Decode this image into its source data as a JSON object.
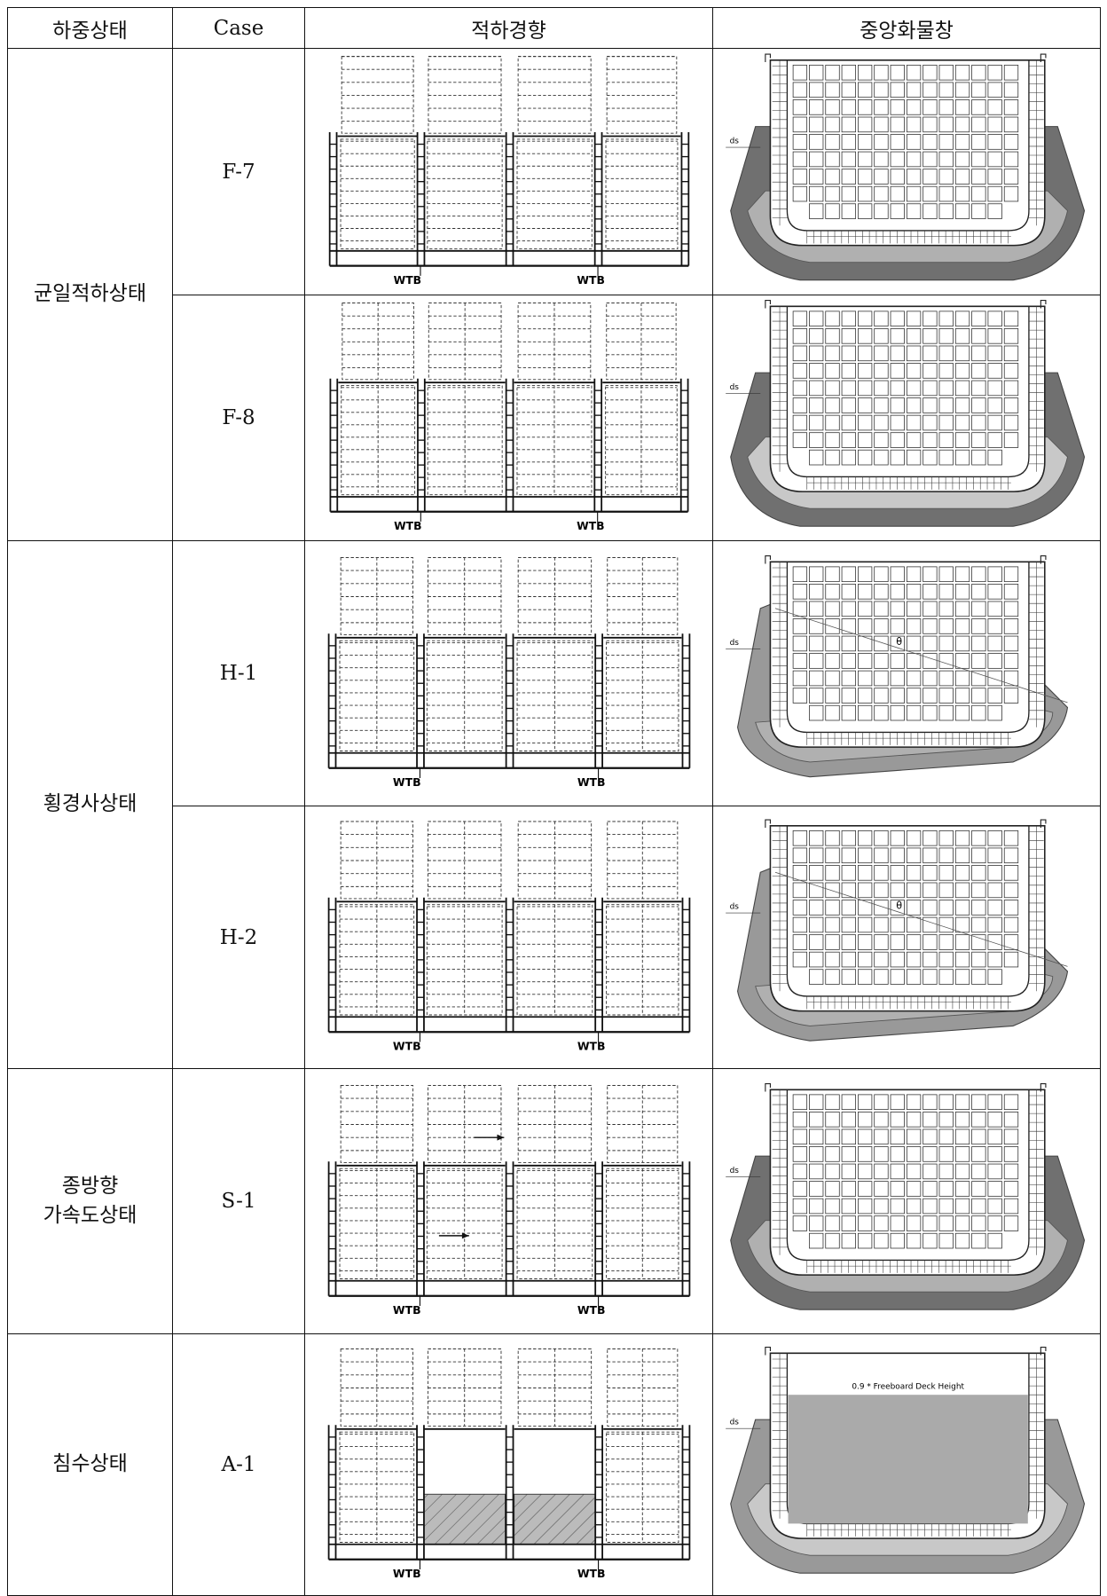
{
  "table": {
    "header": [
      "하중상태",
      "Case",
      "적하경향",
      "중앙화물창"
    ],
    "groups": [
      {
        "condition": "균일적하상태",
        "cases": [
          {
            "case": "F-7",
            "wtb": [
              "WTB",
              "WTB"
            ],
            "ds": "ds"
          },
          {
            "case": "F-8",
            "wtb": [
              "WTB",
              "WTB"
            ],
            "ds": "ds"
          }
        ]
      },
      {
        "condition": "횡경사상태",
        "cases": [
          {
            "case": "H-1",
            "wtb": [
              "WTB",
              "WTB"
            ],
            "ds": "ds",
            "angle": "θ"
          },
          {
            "case": "H-2",
            "wtb": [
              "WTB",
              "WTB"
            ],
            "ds": "ds",
            "angle": "θ"
          }
        ]
      },
      {
        "condition": "종방향\n가속도상태",
        "cases": [
          {
            "case": "S-1",
            "wtb": [
              "WTB",
              "WTB"
            ],
            "ds": "ds"
          }
        ]
      },
      {
        "condition": "침수상태",
        "cases": [
          {
            "case": "A-1",
            "wtb": [
              "WTB",
              "WTB"
            ],
            "ds": "ds",
            "note": "0.9 * Freeboard Deck Height"
          }
        ]
      }
    ]
  }
}
